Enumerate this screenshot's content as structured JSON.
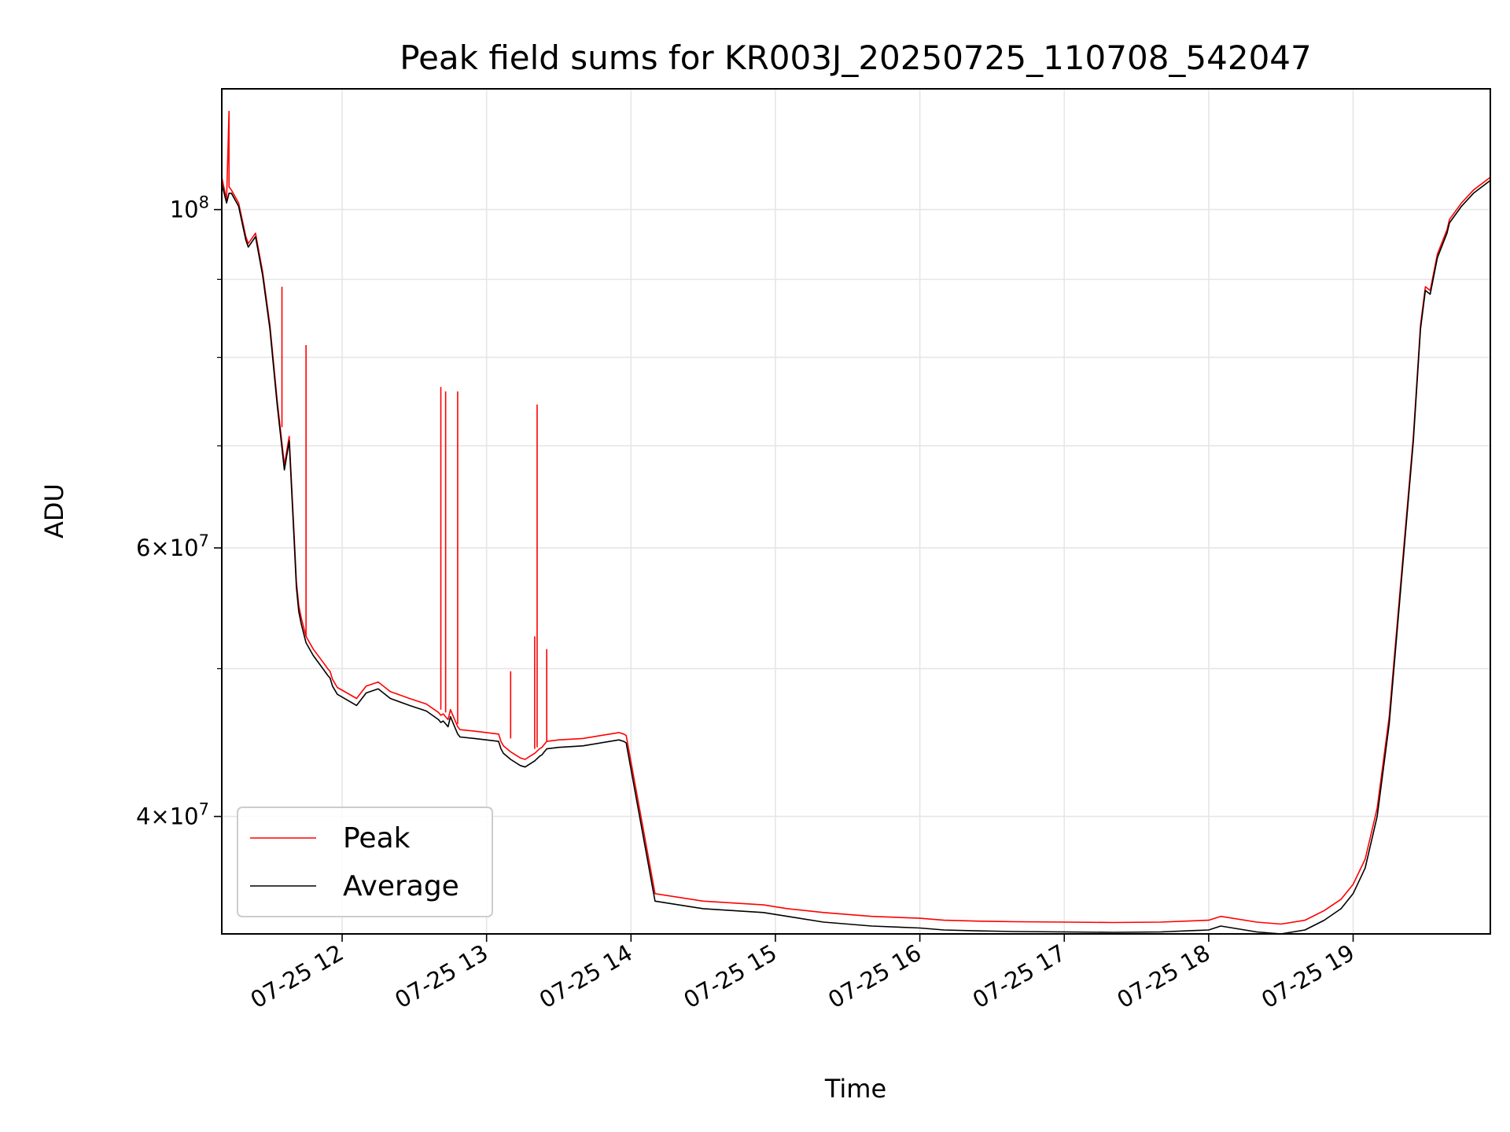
{
  "chart_data": {
    "type": "line",
    "title": "Peak field sums for KR003J_20250725_110708_542047",
    "xlabel": "Time",
    "ylabel": "ADU",
    "yscale": "log",
    "grid": true,
    "legend_position": "lower-left",
    "xlim": [
      "2025-07-25 11:10",
      "2025-07-25 19:57"
    ],
    "ylim": [
      33500000,
      120000000
    ],
    "x_ticks": [
      {
        "value": "2025-07-25 12:00",
        "label": "07-25 12"
      },
      {
        "value": "2025-07-25 13:00",
        "label": "07-25 13"
      },
      {
        "value": "2025-07-25 14:00",
        "label": "07-25 14"
      },
      {
        "value": "2025-07-25 15:00",
        "label": "07-25 15"
      },
      {
        "value": "2025-07-25 16:00",
        "label": "07-25 16"
      },
      {
        "value": "2025-07-25 17:00",
        "label": "07-25 17"
      },
      {
        "value": "2025-07-25 18:00",
        "label": "07-25 18"
      },
      {
        "value": "2025-07-25 19:00",
        "label": "07-25 19"
      }
    ],
    "y_ticks": [
      {
        "value": 40000000,
        "base": "4×10",
        "exp": "7"
      },
      {
        "value": 60000000,
        "base": "6×10",
        "exp": "7"
      },
      {
        "value": 100000000,
        "base": "10",
        "exp": "8"
      }
    ],
    "y_minor_ticks": [
      50000000,
      70000000,
      80000000,
      90000000
    ],
    "series": [
      {
        "name": "Peak",
        "color": "#ff0000",
        "x": [
          "2025-07-25 11:10",
          "2025-07-25 11:12",
          "2025-07-25 11:13",
          "2025-07-25 11:13",
          "2025-07-25 11:14",
          "2025-07-25 11:17",
          "2025-07-25 11:20",
          "2025-07-25 11:21",
          "2025-07-25 11:24",
          "2025-07-25 11:27",
          "2025-07-25 11:30",
          "2025-07-25 11:33",
          "2025-07-25 11:36",
          "2025-07-25 11:38",
          "2025-07-25 11:40",
          "2025-07-25 11:41",
          "2025-07-25 11:42",
          "2025-07-25 11:43",
          "2025-07-25 11:45",
          "2025-07-25 11:48",
          "2025-07-25 11:52",
          "2025-07-25 11:54",
          "2025-07-25 11:55",
          "2025-07-25 11:56",
          "2025-07-25 11:58",
          "2025-07-25 12:02",
          "2025-07-25 12:06",
          "2025-07-25 12:10",
          "2025-07-25 12:15",
          "2025-07-25 12:20",
          "2025-07-25 12:28",
          "2025-07-25 12:35",
          "2025-07-25 12:40",
          "2025-07-25 12:41",
          "2025-07-25 12:42",
          "2025-07-25 12:43",
          "2025-07-25 12:44",
          "2025-07-25 12:45",
          "2025-07-25 12:46",
          "2025-07-25 12:47",
          "2025-07-25 12:48",
          "2025-07-25 12:49",
          "2025-07-25 12:55",
          "2025-07-25 13:05",
          "2025-07-25 13:06",
          "2025-07-25 13:07",
          "2025-07-25 13:10",
          "2025-07-25 13:14",
          "2025-07-25 13:16",
          "2025-07-25 13:18",
          "2025-07-25 13:20",
          "2025-07-25 13:22",
          "2025-07-25 13:23",
          "2025-07-25 13:24",
          "2025-07-25 13:25",
          "2025-07-25 13:30",
          "2025-07-25 13:40",
          "2025-07-25 13:55",
          "2025-07-25 13:57",
          "2025-07-25 13:58",
          "2025-07-25 14:10",
          "2025-07-25 14:30",
          "2025-07-25 14:55",
          "2025-07-25 15:05",
          "2025-07-25 15:20",
          "2025-07-25 15:40",
          "2025-07-25 16:00",
          "2025-07-25 16:10",
          "2025-07-25 16:25",
          "2025-07-25 16:40",
          "2025-07-25 17:00",
          "2025-07-25 17:20",
          "2025-07-25 17:40",
          "2025-07-25 18:00",
          "2025-07-25 18:05",
          "2025-07-25 18:20",
          "2025-07-25 18:30",
          "2025-07-25 18:40",
          "2025-07-25 18:48",
          "2025-07-25 18:55",
          "2025-07-25 19:00",
          "2025-07-25 19:05",
          "2025-07-25 19:10",
          "2025-07-25 19:15",
          "2025-07-25 19:20",
          "2025-07-25 19:25",
          "2025-07-25 19:28",
          "2025-07-25 19:30",
          "2025-07-25 19:32",
          "2025-07-25 19:35",
          "2025-07-25 19:39",
          "2025-07-25 19:40",
          "2025-07-25 19:42",
          "2025-07-25 19:45",
          "2025-07-25 19:50",
          "2025-07-25 19:57"
        ],
        "y": [
          105000000,
          101500000,
          116000000,
          103500000,
          103000000,
          101000000,
          96000000,
          95000000,
          96500000,
          91000000,
          84000000,
          75000000,
          68000000,
          71000000,
          61500000,
          57000000,
          55000000,
          54000000,
          52500000,
          51500000,
          50500000,
          50000000,
          49800000,
          49200000,
          48600000,
          48200000,
          47800000,
          48700000,
          49000000,
          48300000,
          47800000,
          47400000,
          46800000,
          46600000,
          46700000,
          46500000,
          46300000,
          47000000,
          46600000,
          46200000,
          45800000,
          45600000,
          45500000,
          45300000,
          44800000,
          44500000,
          44100000,
          43700000,
          43600000,
          43800000,
          44000000,
          44300000,
          44400000,
          44600000,
          44800000,
          44900000,
          45000000,
          45400000,
          45300000,
          45200000,
          35600000,
          35200000,
          35000000,
          34800000,
          34600000,
          34400000,
          34300000,
          34200000,
          34150000,
          34120000,
          34100000,
          34080000,
          34100000,
          34200000,
          34400000,
          34100000,
          34000000,
          34200000,
          34700000,
          35300000,
          36100000,
          37500000,
          40500000,
          46500000,
          57500000,
          71000000,
          84000000,
          89000000,
          88500000,
          93500000,
          97000000,
          98500000,
          99500000,
          101000000,
          103000000,
          105000000
        ],
        "spikes": [
          {
            "x": "2025-07-25 11:35",
            "base": 72000000,
            "peak": 89000000
          },
          {
            "x": "2025-07-25 11:45",
            "base": 52500000,
            "peak": 81500000
          },
          {
            "x": "2025-07-25 12:41",
            "base": 47000000,
            "peak": 76500000
          },
          {
            "x": "2025-07-25 12:43",
            "base": 46800000,
            "peak": 76000000
          },
          {
            "x": "2025-07-25 12:48",
            "base": 46000000,
            "peak": 76000000
          },
          {
            "x": "2025-07-25 13:10",
            "base": 45000000,
            "peak": 49800000
          },
          {
            "x": "2025-07-25 13:20",
            "base": 44300000,
            "peak": 52500000
          },
          {
            "x": "2025-07-25 13:21",
            "base": 44400000,
            "peak": 74500000
          },
          {
            "x": "2025-07-25 13:25",
            "base": 44800000,
            "peak": 51500000
          }
        ]
      },
      {
        "name": "Average",
        "color": "#000000",
        "x": [
          "2025-07-25 11:10",
          "2025-07-25 11:12",
          "2025-07-25 11:13",
          "2025-07-25 11:14",
          "2025-07-25 11:17",
          "2025-07-25 11:20",
          "2025-07-25 11:21",
          "2025-07-25 11:24",
          "2025-07-25 11:27",
          "2025-07-25 11:30",
          "2025-07-25 11:33",
          "2025-07-25 11:36",
          "2025-07-25 11:38",
          "2025-07-25 11:40",
          "2025-07-25 11:41",
          "2025-07-25 11:42",
          "2025-07-25 11:43",
          "2025-07-25 11:45",
          "2025-07-25 11:48",
          "2025-07-25 11:52",
          "2025-07-25 11:54",
          "2025-07-25 11:55",
          "2025-07-25 11:56",
          "2025-07-25 11:58",
          "2025-07-25 12:02",
          "2025-07-25 12:06",
          "2025-07-25 12:10",
          "2025-07-25 12:15",
          "2025-07-25 12:20",
          "2025-07-25 12:28",
          "2025-07-25 12:35",
          "2025-07-25 12:40",
          "2025-07-25 12:41",
          "2025-07-25 12:42",
          "2025-07-25 12:43",
          "2025-07-25 12:44",
          "2025-07-25 12:45",
          "2025-07-25 12:46",
          "2025-07-25 12:47",
          "2025-07-25 12:48",
          "2025-07-25 12:49",
          "2025-07-25 12:55",
          "2025-07-25 13:05",
          "2025-07-25 13:06",
          "2025-07-25 13:07",
          "2025-07-25 13:10",
          "2025-07-25 13:14",
          "2025-07-25 13:16",
          "2025-07-25 13:18",
          "2025-07-25 13:20",
          "2025-07-25 13:22",
          "2025-07-25 13:23",
          "2025-07-25 13:24",
          "2025-07-25 13:25",
          "2025-07-25 13:30",
          "2025-07-25 13:40",
          "2025-07-25 13:55",
          "2025-07-25 13:57",
          "2025-07-25 13:58",
          "2025-07-25 14:10",
          "2025-07-25 14:30",
          "2025-07-25 14:55",
          "2025-07-25 15:05",
          "2025-07-25 15:20",
          "2025-07-25 15:40",
          "2025-07-25 16:00",
          "2025-07-25 16:10",
          "2025-07-25 16:25",
          "2025-07-25 16:40",
          "2025-07-25 17:00",
          "2025-07-25 17:20",
          "2025-07-25 17:40",
          "2025-07-25 18:00",
          "2025-07-25 18:05",
          "2025-07-25 18:20",
          "2025-07-25 18:30",
          "2025-07-25 18:40",
          "2025-07-25 18:48",
          "2025-07-25 18:55",
          "2025-07-25 19:00",
          "2025-07-25 19:05",
          "2025-07-25 19:10",
          "2025-07-25 19:15",
          "2025-07-25 19:20",
          "2025-07-25 19:25",
          "2025-07-25 19:28",
          "2025-07-25 19:30",
          "2025-07-25 19:32",
          "2025-07-25 19:35",
          "2025-07-25 19:39",
          "2025-07-25 19:40",
          "2025-07-25 19:42",
          "2025-07-25 19:45",
          "2025-07-25 19:50",
          "2025-07-25 19:57"
        ],
        "y": [
          104000000,
          101000000,
          102500000,
          102500000,
          100500000,
          95500000,
          94500000,
          96000000,
          90500000,
          83500000,
          74500000,
          67500000,
          70500000,
          61000000,
          56500000,
          54500000,
          53500000,
          52000000,
          51000000,
          50000000,
          49500000,
          49300000,
          48700000,
          48100000,
          47700000,
          47300000,
          48200000,
          48500000,
          47800000,
          47300000,
          46900000,
          46300000,
          46100000,
          46200000,
          46000000,
          45800000,
          46500000,
          46100000,
          45700000,
          45300000,
          45100000,
          45000000,
          44800000,
          44300000,
          44000000,
          43600000,
          43200000,
          43100000,
          43300000,
          43500000,
          43800000,
          43900000,
          44100000,
          44300000,
          44400000,
          44500000,
          44900000,
          44800000,
          44700000,
          35200000,
          34800000,
          34600000,
          34400000,
          34100000,
          33900000,
          33800000,
          33700000,
          33650000,
          33620000,
          33600000,
          33580000,
          33600000,
          33700000,
          33900000,
          33600000,
          33500000,
          33700000,
          34200000,
          34800000,
          35600000,
          37000000,
          40000000,
          46000000,
          57000000,
          70500000,
          83500000,
          88500000,
          88000000,
          93000000,
          96500000,
          98000000,
          99000000,
          100500000,
          102500000,
          104500000
        ]
      }
    ]
  }
}
